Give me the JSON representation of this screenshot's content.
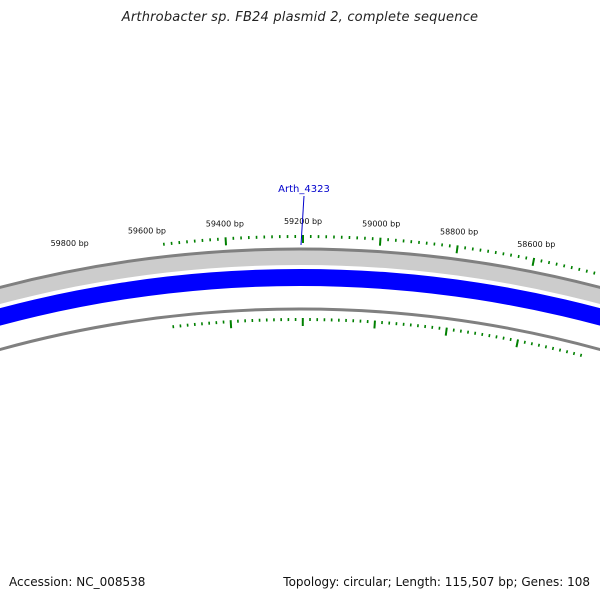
{
  "title": "Arthrobacter sp. FB24 plasmid 2, complete sequence",
  "accession_text": "Accession: NC_008538",
  "summary_text": "Topology: circular; Length: 115,507 bp; Genes: 108",
  "colors": {
    "backbone": "#808080",
    "backbone_fill": "#cccccc",
    "gene": "#0000ff",
    "tick": "#008000",
    "label_link": "#0000cc"
  },
  "ruler": {
    "unit": "bp",
    "labels": [
      "59800 bp",
      "59600 bp",
      "59400 bp",
      "59200 bp",
      "59000 bp",
      "58800 bp",
      "58600 bp"
    ]
  },
  "genes": [
    {
      "name": "Arth_4323"
    }
  ]
}
